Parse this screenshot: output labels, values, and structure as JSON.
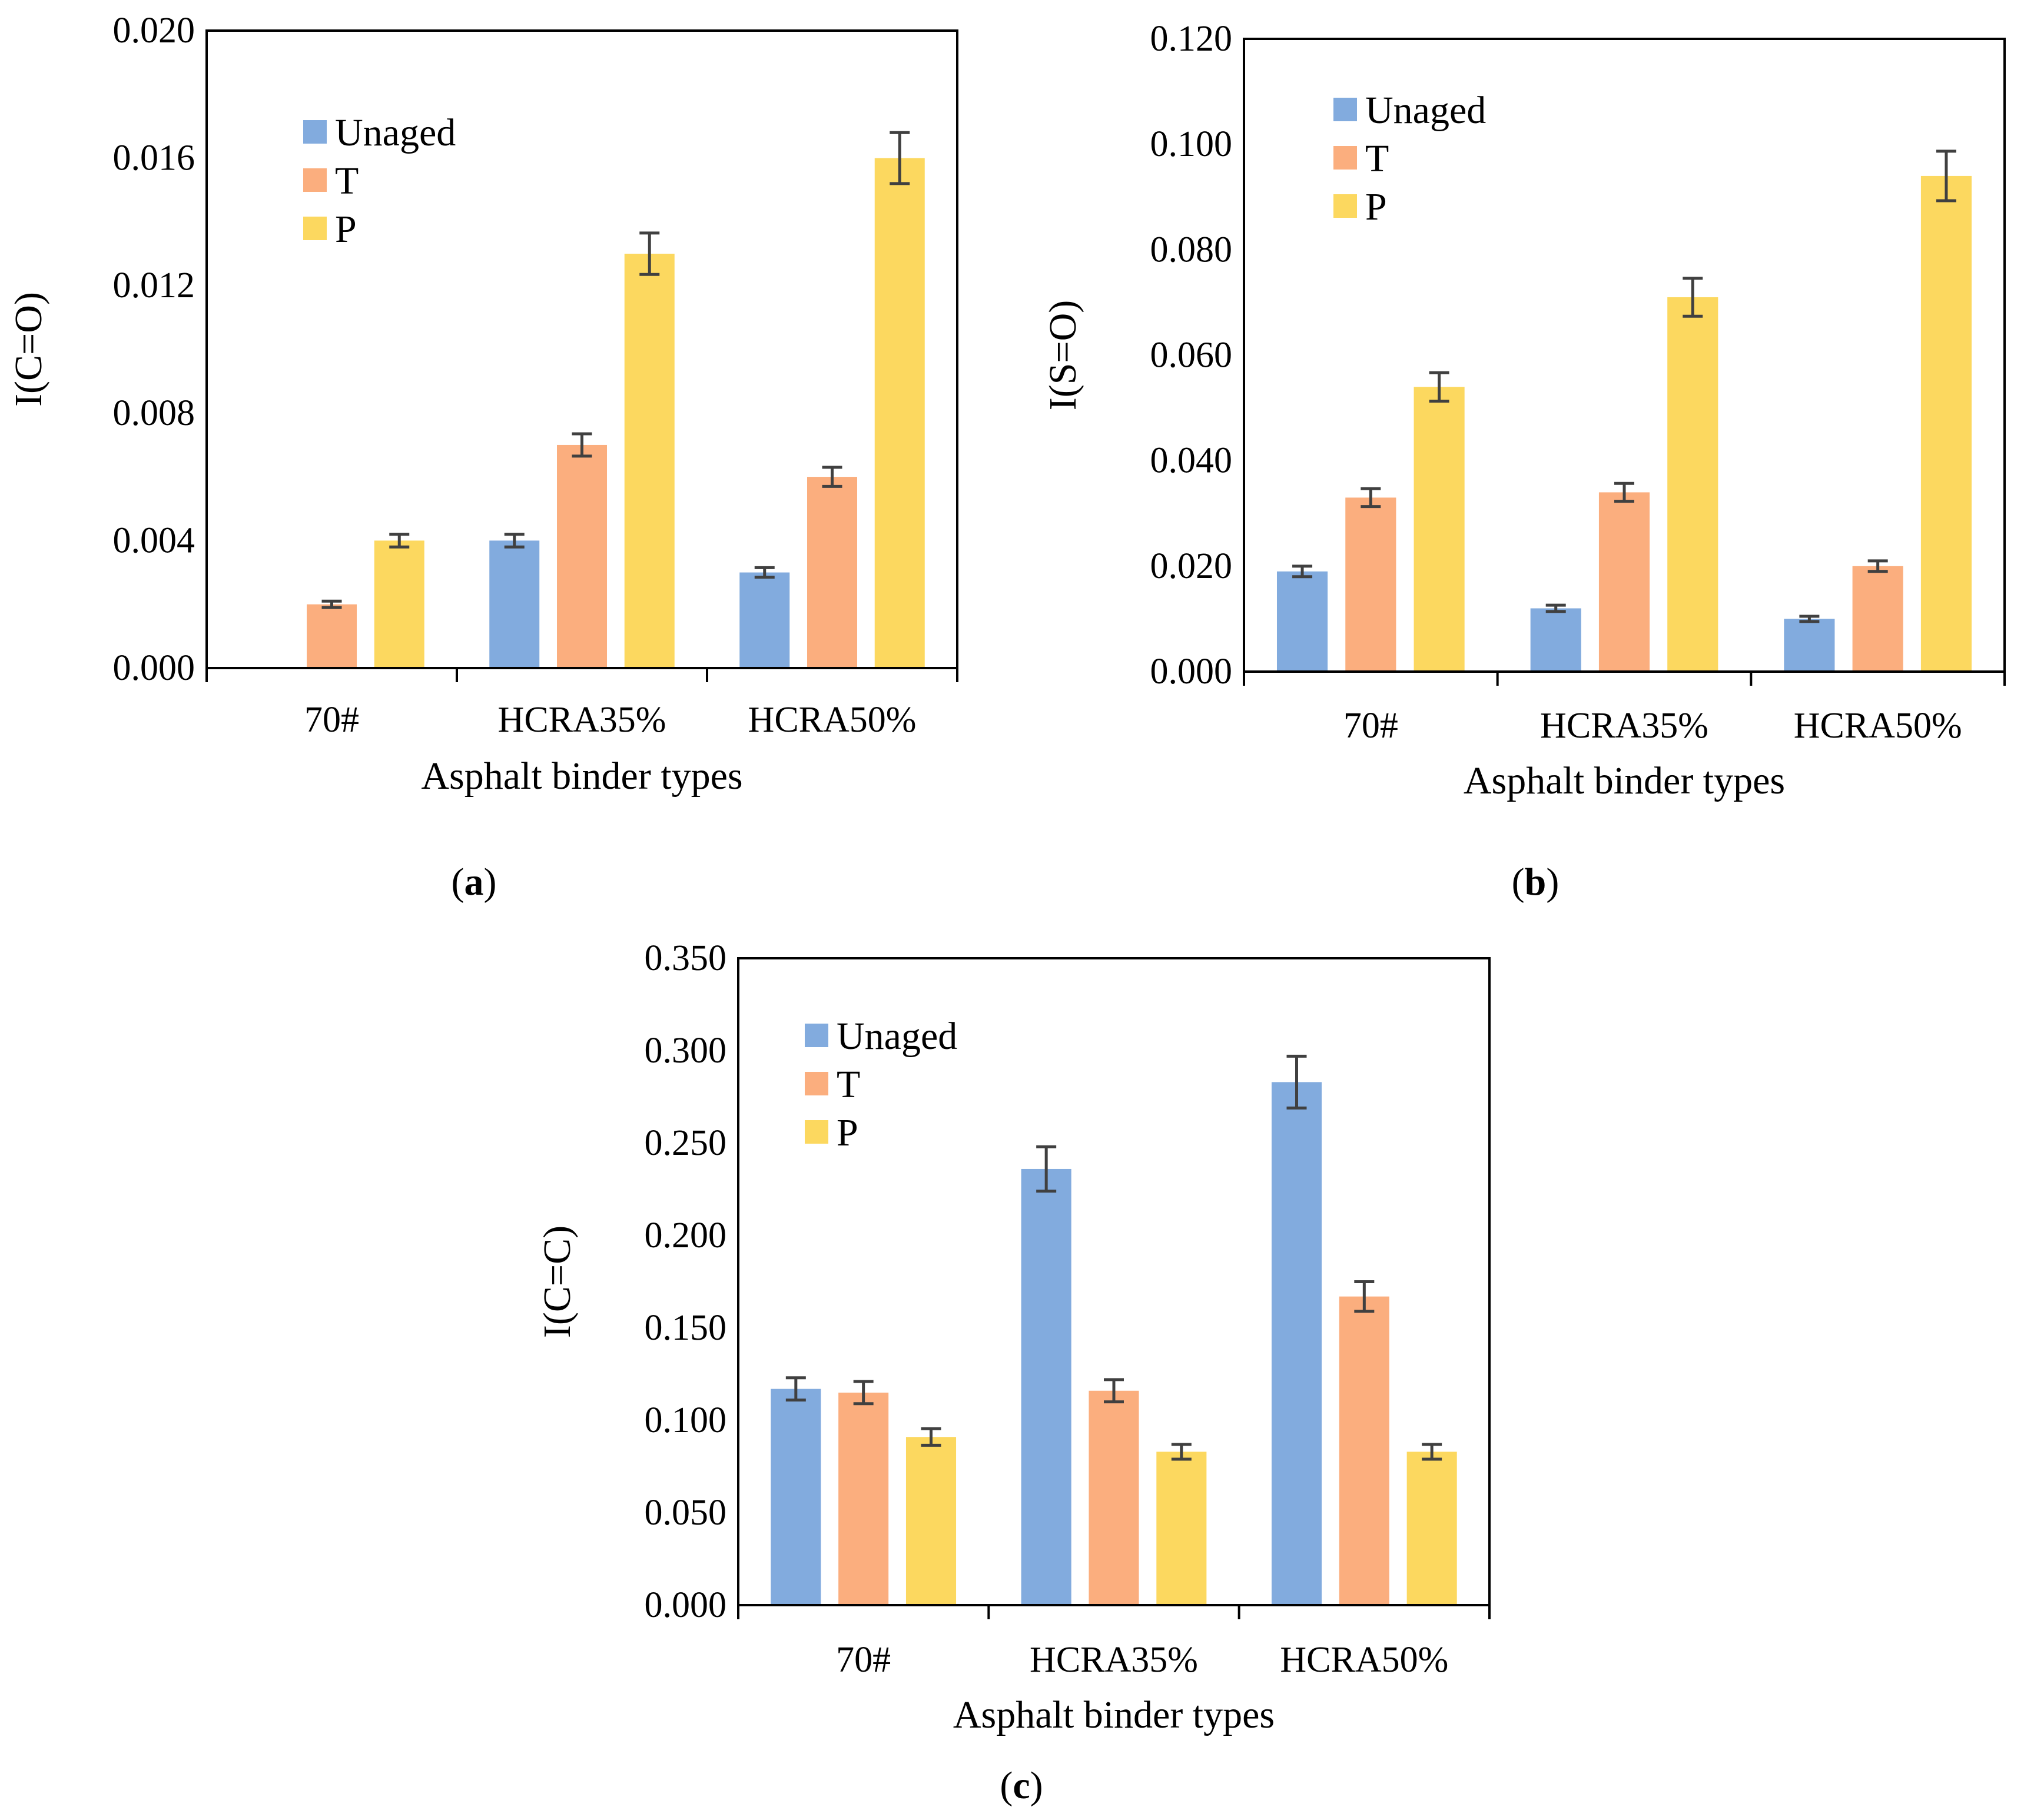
{
  "chart_data": [
    {
      "type": "bar",
      "panel": "a",
      "panel_label": "a",
      "xlabel": "Asphalt binder types",
      "ylabel": "I(C=O)",
      "categories": [
        "70#",
        "HCRA35%",
        "HCRA50%"
      ],
      "ylim": [
        0,
        0.02
      ],
      "yticks": [
        "0.000",
        "0.004",
        "0.008",
        "0.012",
        "0.016",
        "0.020"
      ],
      "legend_position": "top-left",
      "series": [
        {
          "name": "Unaged",
          "color": "#82ABDE",
          "values": [
            0.0,
            0.004,
            0.003
          ],
          "errors": [
            0.0,
            0.0002,
            0.00015
          ]
        },
        {
          "name": "T",
          "color": "#FBAE7E",
          "values": [
            0.002,
            0.007,
            0.006
          ],
          "errors": [
            0.0001,
            0.00035,
            0.0003
          ]
        },
        {
          "name": "P",
          "color": "#FCD85F",
          "values": [
            0.004,
            0.013,
            0.016
          ],
          "errors": [
            0.0002,
            0.00065,
            0.0008
          ]
        }
      ]
    },
    {
      "type": "bar",
      "panel": "b",
      "panel_label": "b",
      "xlabel": "Asphalt binder types",
      "ylabel": "I(S=O)",
      "categories": [
        "70#",
        "HCRA35%",
        "HCRA50%"
      ],
      "ylim": [
        0,
        0.12
      ],
      "yticks": [
        "0.000",
        "0.020",
        "0.040",
        "0.060",
        "0.080",
        "0.100",
        "0.120"
      ],
      "legend_position": "top-left",
      "series": [
        {
          "name": "Unaged",
          "color": "#82ABDE",
          "values": [
            0.019,
            0.012,
            0.01
          ],
          "errors": [
            0.001,
            0.0006,
            0.0005
          ]
        },
        {
          "name": "T",
          "color": "#FBAE7E",
          "values": [
            0.033,
            0.034,
            0.02
          ],
          "errors": [
            0.0017,
            0.0017,
            0.001
          ]
        },
        {
          "name": "P",
          "color": "#FCD85F",
          "values": [
            0.054,
            0.071,
            0.094
          ],
          "errors": [
            0.0027,
            0.0036,
            0.0047
          ]
        }
      ]
    },
    {
      "type": "bar",
      "panel": "c",
      "panel_label": "c",
      "xlabel": "Asphalt binder types",
      "ylabel": "I(C=C)",
      "categories": [
        "70#",
        "HCRA35%",
        "HCRA50%"
      ],
      "ylim": [
        0,
        0.35
      ],
      "yticks": [
        "0.000",
        "0.050",
        "0.100",
        "0.150",
        "0.200",
        "0.250",
        "0.300",
        "0.350"
      ],
      "legend_position": "top-left",
      "series": [
        {
          "name": "Unaged",
          "color": "#82ABDE",
          "values": [
            0.117,
            0.236,
            0.283
          ],
          "errors": [
            0.006,
            0.012,
            0.014
          ]
        },
        {
          "name": "T",
          "color": "#FBAE7E",
          "values": [
            0.115,
            0.116,
            0.167
          ],
          "errors": [
            0.006,
            0.006,
            0.008
          ]
        },
        {
          "name": "P",
          "color": "#FCD85F",
          "values": [
            0.091,
            0.083,
            0.083
          ],
          "errors": [
            0.0045,
            0.004,
            0.004
          ]
        }
      ]
    }
  ],
  "colors": {
    "axis": "#000000",
    "error_bar": "#404040"
  }
}
